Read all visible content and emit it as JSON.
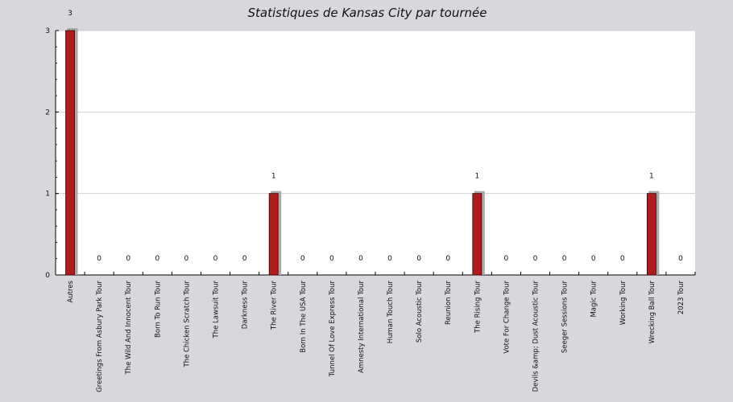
{
  "chart_data": {
    "type": "bar",
    "title": "Statistiques de Kansas City par tournée",
    "xlabel": "",
    "ylabel": "",
    "ylim": [
      0,
      3
    ],
    "yticks": [
      0,
      1,
      2,
      3
    ],
    "grid": true,
    "legend": "none",
    "colors": {
      "bar": "#b01c1c",
      "bar_outline": "#3a0000",
      "bar_shadow": "#a9a9a9",
      "plot_background": "#ffffff",
      "page_background": "#d8d7dc",
      "grid": "#cfcfcf"
    },
    "categories": [
      "Autres",
      "Greetings From Asbury Park Tour",
      "The Wild And Innocent Tour",
      "Born To Run Tour",
      "The Chicken Scratch Tour",
      "The Lawsuit Tour",
      "Darkness Tour",
      "The River Tour",
      "Born In The USA Tour",
      "Tunnel Of Love Express Tour",
      "Amnesty International Tour",
      "Human Touch Tour",
      "Solo Acoustic Tour",
      "Reunion Tour",
      "The Rising Tour",
      "Vote For Change Tour",
      "Devils &amp; Dust Acoustic Tour",
      "Seeger Sessions Tour",
      "Magic Tour",
      "Working Tour",
      "Wrecking Ball Tour",
      "2023 Tour"
    ],
    "values": [
      3,
      0,
      0,
      0,
      0,
      0,
      0,
      1,
      0,
      0,
      0,
      0,
      0,
      0,
      1,
      0,
      0,
      0,
      0,
      0,
      1,
      0
    ],
    "data_labels": [
      "3",
      "0",
      "0",
      "0",
      "0",
      "0",
      "0",
      "1",
      "0",
      "0",
      "0",
      "0",
      "0",
      "0",
      "1",
      "0",
      "0",
      "0",
      "0",
      "0",
      "1",
      "0"
    ]
  }
}
